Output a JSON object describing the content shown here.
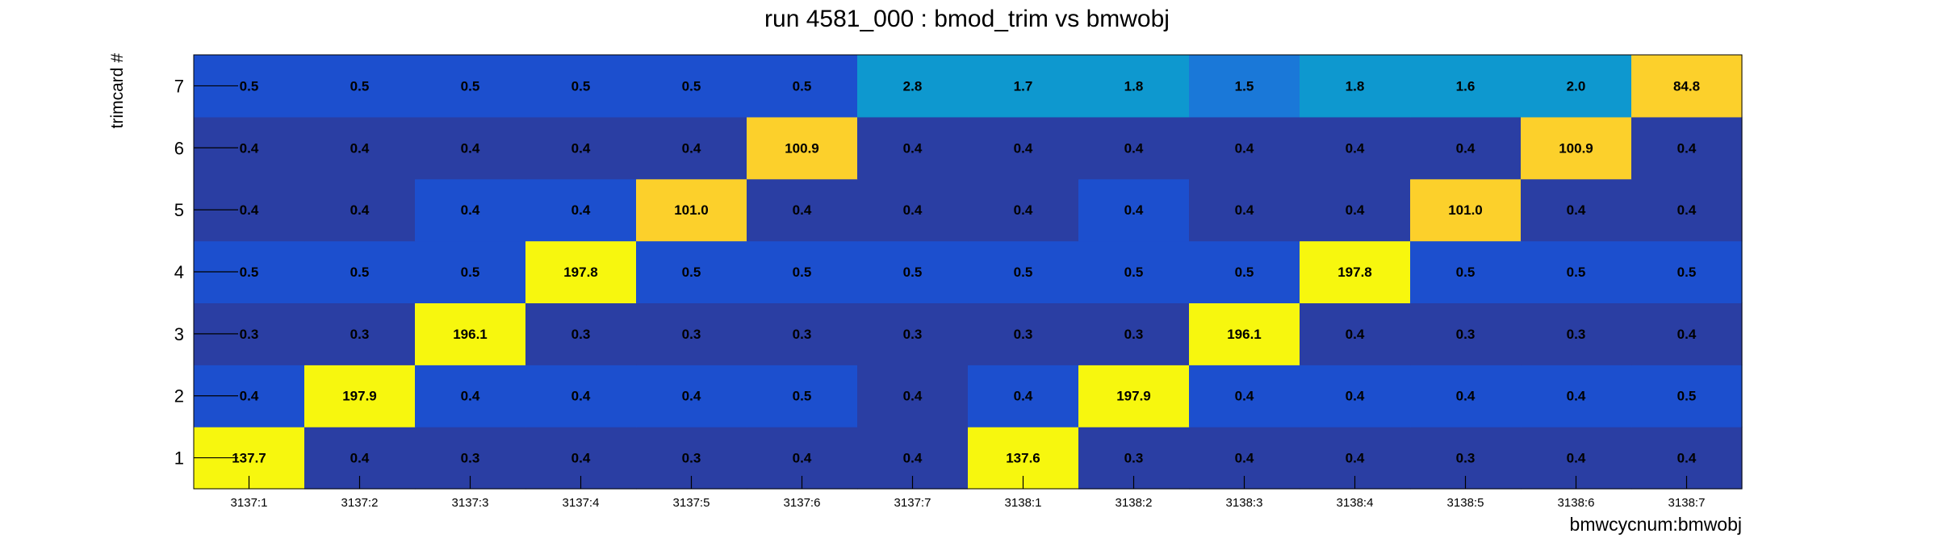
{
  "chart_data": {
    "type": "heatmap",
    "title": "run 4581_000 : bmod_trim vs bmwobj",
    "xlabel": "bmwcycnum:bmwobj",
    "ylabel": "trimcard #",
    "x_categories": [
      "3137:1",
      "3137:2",
      "3137:3",
      "3137:4",
      "3137:5",
      "3137:6",
      "3137:7",
      "3138:1",
      "3138:2",
      "3138:3",
      "3138:4",
      "3138:5",
      "3138:6",
      "3138:7"
    ],
    "y_categories": [
      "1",
      "2",
      "3",
      "4",
      "5",
      "6",
      "7"
    ],
    "values": [
      [
        137.7,
        0.4,
        0.3,
        0.4,
        0.3,
        0.4,
        0.4,
        137.6,
        0.3,
        0.4,
        0.4,
        0.3,
        0.4,
        0.4
      ],
      [
        0.4,
        197.9,
        0.4,
        0.4,
        0.4,
        0.5,
        0.4,
        0.4,
        197.9,
        0.4,
        0.4,
        0.4,
        0.4,
        0.5
      ],
      [
        0.3,
        0.3,
        196.1,
        0.3,
        0.3,
        0.3,
        0.3,
        0.3,
        0.3,
        196.1,
        0.4,
        0.3,
        0.3,
        0.4
      ],
      [
        0.5,
        0.5,
        0.5,
        197.8,
        0.5,
        0.5,
        0.5,
        0.5,
        0.5,
        0.5,
        197.8,
        0.5,
        0.5,
        0.5
      ],
      [
        0.4,
        0.4,
        0.4,
        0.4,
        101.0,
        0.4,
        0.4,
        0.4,
        0.4,
        0.4,
        0.4,
        101.0,
        0.4,
        0.4
      ],
      [
        0.4,
        0.4,
        0.4,
        0.4,
        0.4,
        100.9,
        0.4,
        0.4,
        0.4,
        0.4,
        0.4,
        0.4,
        100.9,
        0.4
      ],
      [
        0.5,
        0.5,
        0.5,
        0.5,
        0.5,
        0.5,
        2.8,
        1.7,
        1.8,
        1.5,
        1.8,
        1.6,
        2.0,
        84.8
      ]
    ],
    "value_format": "0.0",
    "colors": {
      "dark": "#2a3ea3",
      "medium": "#1c4fce",
      "light_blue": "#0e98cf",
      "mid_blue": "#1a78d8",
      "amber": "#fcd02b",
      "yellow": "#f7f70e"
    },
    "cell_colors": [
      [
        "yellow",
        "dark",
        "dark",
        "dark",
        "dark",
        "dark",
        "dark",
        "yellow",
        "dark",
        "dark",
        "dark",
        "dark",
        "dark",
        "dark"
      ],
      [
        "medium",
        "yellow",
        "medium",
        "medium",
        "medium",
        "medium",
        "dark",
        "medium",
        "yellow",
        "medium",
        "medium",
        "medium",
        "medium",
        "medium"
      ],
      [
        "dark",
        "dark",
        "yellow",
        "dark",
        "dark",
        "dark",
        "dark",
        "dark",
        "dark",
        "yellow",
        "dark",
        "dark",
        "dark",
        "dark"
      ],
      [
        "medium",
        "medium",
        "medium",
        "yellow",
        "medium",
        "medium",
        "medium",
        "medium",
        "medium",
        "medium",
        "yellow",
        "medium",
        "medium",
        "medium"
      ],
      [
        "dark",
        "dark",
        "medium",
        "medium",
        "amber",
        "dark",
        "dark",
        "dark",
        "medium",
        "dark",
        "dark",
        "amber",
        "dark",
        "dark"
      ],
      [
        "dark",
        "dark",
        "dark",
        "dark",
        "dark",
        "amber",
        "dark",
        "dark",
        "dark",
        "dark",
        "dark",
        "dark",
        "amber",
        "dark"
      ],
      [
        "medium",
        "medium",
        "medium",
        "medium",
        "medium",
        "medium",
        "light_blue",
        "light_blue",
        "light_blue",
        "mid_blue",
        "light_blue",
        "light_blue",
        "light_blue",
        "amber"
      ]
    ],
    "legend": "none",
    "grid": false
  }
}
